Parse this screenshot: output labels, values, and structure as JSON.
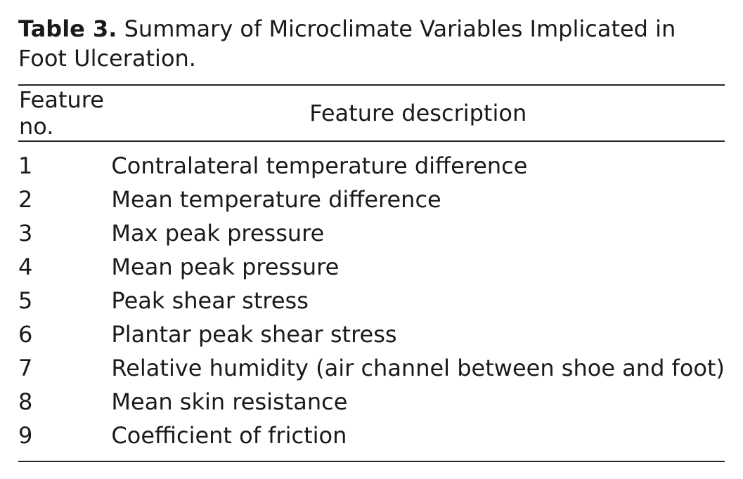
{
  "caption": {
    "label": "Table 3.",
    "text": "Summary of Microclimate Variables Implicated in Foot Ulceration."
  },
  "table": {
    "header": [
      "Feature no.",
      "Feature description"
    ],
    "rows": [
      [
        "1",
        "Contralateral temperature difference"
      ],
      [
        "2",
        "Mean temperature difference"
      ],
      [
        "3",
        "Max peak pressure"
      ],
      [
        "4",
        "Mean peak pressure"
      ],
      [
        "5",
        "Peak shear stress"
      ],
      [
        "6",
        "Plantar peak shear stress"
      ],
      [
        "7",
        "Relative humidity (air channel between shoe and foot)"
      ],
      [
        "8",
        "Mean skin resistance"
      ],
      [
        "9",
        "Coefficient of friction"
      ]
    ]
  }
}
